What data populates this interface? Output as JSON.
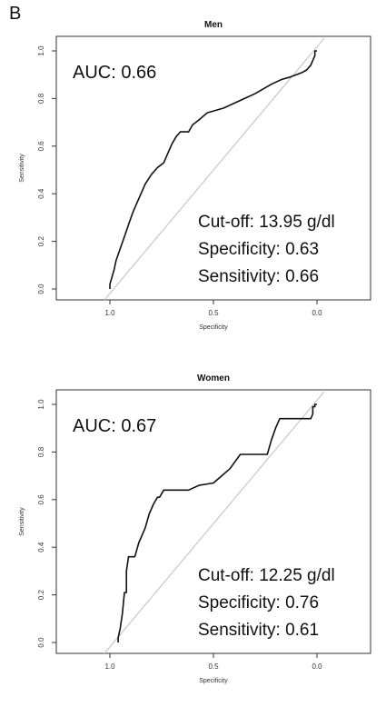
{
  "figure": {
    "panel_label": "B"
  },
  "chart_data": [
    {
      "type": "line",
      "title": "Men",
      "xlabel": "Specificity",
      "ylabel": "Sensitivity",
      "x_reversed": true,
      "xlim": [
        1.0,
        0.0
      ],
      "ylim": [
        0.0,
        1.0
      ],
      "x_ticks": [
        1.0,
        0.5,
        0.0
      ],
      "x_tick_labels": [
        "1.0",
        "0.5",
        "0.0"
      ],
      "y_ticks": [
        0.0,
        0.2,
        0.4,
        0.6,
        0.8,
        1.0
      ],
      "y_tick_labels": [
        "0.0",
        "0.2",
        "0.4",
        "0.6",
        "0.8",
        "1.0"
      ],
      "grid": false,
      "annotations": {
        "auc": "AUC: 0.66",
        "cutoff": "Cut-off: 13.95 g/dl",
        "specificity": "Specificity: 0.63",
        "sensitivity": "Sensitivity: 0.66"
      },
      "reference_line": {
        "from": [
          1.0,
          0.0
        ],
        "to": [
          0.0,
          1.0
        ],
        "color": "#c8c8c8"
      },
      "series": [
        {
          "color": "#111111",
          "points": [
            [
              1.0,
              0.0
            ],
            [
              1.0,
              0.02
            ],
            [
              0.99,
              0.05
            ],
            [
              0.98,
              0.08
            ],
            [
              0.97,
              0.12
            ],
            [
              0.95,
              0.17
            ],
            [
              0.93,
              0.22
            ],
            [
              0.91,
              0.27
            ],
            [
              0.89,
              0.32
            ],
            [
              0.87,
              0.36
            ],
            [
              0.85,
              0.4
            ],
            [
              0.83,
              0.44
            ],
            [
              0.8,
              0.48
            ],
            [
              0.77,
              0.51
            ],
            [
              0.74,
              0.53
            ],
            [
              0.72,
              0.57
            ],
            [
              0.7,
              0.61
            ],
            [
              0.68,
              0.64
            ],
            [
              0.66,
              0.66
            ],
            [
              0.62,
              0.66
            ],
            [
              0.6,
              0.69
            ],
            [
              0.57,
              0.71
            ],
            [
              0.53,
              0.74
            ],
            [
              0.49,
              0.75
            ],
            [
              0.45,
              0.76
            ],
            [
              0.4,
              0.78
            ],
            [
              0.35,
              0.8
            ],
            [
              0.3,
              0.82
            ],
            [
              0.26,
              0.84
            ],
            [
              0.22,
              0.86
            ],
            [
              0.17,
              0.88
            ],
            [
              0.13,
              0.89
            ],
            [
              0.1,
              0.9
            ],
            [
              0.07,
              0.91
            ],
            [
              0.05,
              0.92
            ],
            [
              0.03,
              0.94
            ],
            [
              0.02,
              0.96
            ],
            [
              0.01,
              0.98
            ],
            [
              0.01,
              1.0
            ],
            [
              0.0,
              1.0
            ]
          ]
        }
      ]
    },
    {
      "type": "line",
      "title": "Women",
      "xlabel": "Specificity",
      "ylabel": "Sensitivity",
      "x_reversed": true,
      "xlim": [
        1.0,
        0.0
      ],
      "ylim": [
        0.0,
        1.0
      ],
      "x_ticks": [
        1.0,
        0.5,
        0.0
      ],
      "x_tick_labels": [
        "1.0",
        "0.5",
        "0.0"
      ],
      "y_ticks": [
        0.0,
        0.2,
        0.4,
        0.6,
        0.8,
        1.0
      ],
      "y_tick_labels": [
        "0.0",
        "0.2",
        "0.4",
        "0.6",
        "0.8",
        "1.0"
      ],
      "grid": false,
      "annotations": {
        "auc": "AUC: 0.67",
        "cutoff": "Cut-off: 12.25 g/dl",
        "specificity": "Specificity: 0.76",
        "sensitivity": "Sensitivity: 0.61"
      },
      "reference_line": {
        "from": [
          1.0,
          0.0
        ],
        "to": [
          0.0,
          1.0
        ],
        "color": "#c8c8c8"
      },
      "series": [
        {
          "color": "#111111",
          "points": [
            [
              0.96,
              0.0
            ],
            [
              0.96,
              0.02
            ],
            [
              0.95,
              0.06
            ],
            [
              0.94,
              0.12
            ],
            [
              0.93,
              0.21
            ],
            [
              0.92,
              0.21
            ],
            [
              0.92,
              0.3
            ],
            [
              0.91,
              0.36
            ],
            [
              0.88,
              0.36
            ],
            [
              0.86,
              0.42
            ],
            [
              0.83,
              0.48
            ],
            [
              0.81,
              0.54
            ],
            [
              0.79,
              0.58
            ],
            [
              0.77,
              0.61
            ],
            [
              0.76,
              0.61
            ],
            [
              0.74,
              0.64
            ],
            [
              0.62,
              0.64
            ],
            [
              0.57,
              0.66
            ],
            [
              0.5,
              0.67
            ],
            [
              0.46,
              0.7
            ],
            [
              0.42,
              0.73
            ],
            [
              0.37,
              0.79
            ],
            [
              0.24,
              0.79
            ],
            [
              0.22,
              0.85
            ],
            [
              0.2,
              0.9
            ],
            [
              0.18,
              0.94
            ],
            [
              0.03,
              0.94
            ],
            [
              0.02,
              0.96
            ],
            [
              0.02,
              0.99
            ],
            [
              0.01,
              0.99
            ],
            [
              0.01,
              1.0
            ],
            [
              0.0,
              1.0
            ]
          ]
        }
      ]
    }
  ]
}
